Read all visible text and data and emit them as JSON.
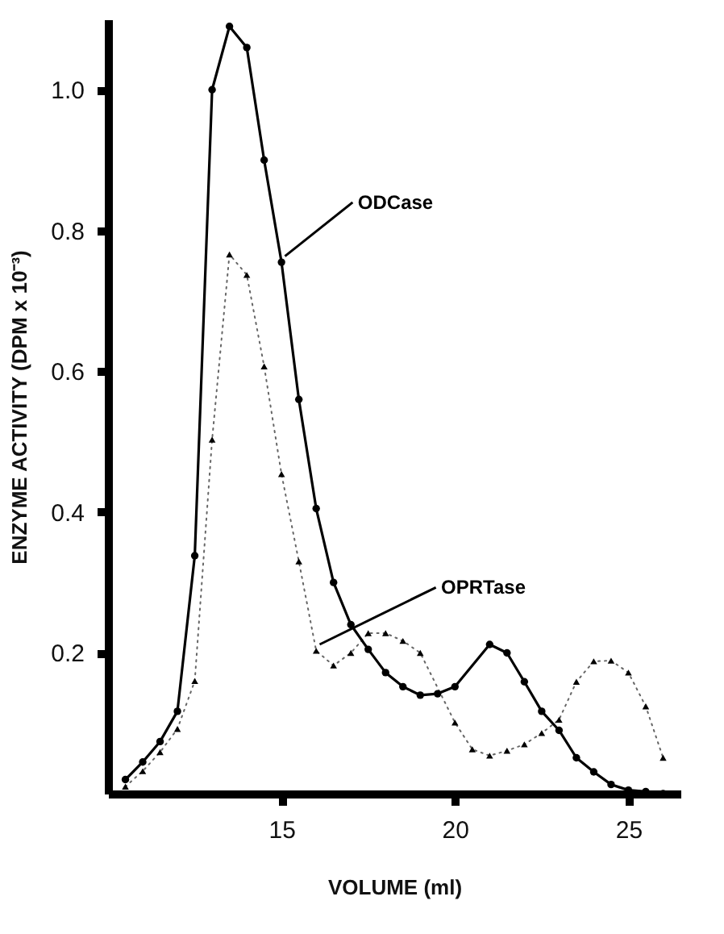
{
  "chart_data": {
    "type": "line",
    "xlabel": "VOLUME (ml)",
    "ylabel": "ENZYME ACTIVITY (DPM x 10⁻³)",
    "xlim": [
      10,
      26.5
    ],
    "ylim": [
      0,
      1.1
    ],
    "xticks": [
      15,
      20,
      25
    ],
    "yticks": [
      0.2,
      0.4,
      0.6,
      0.8,
      {
        "value": 1,
        "label": "1.0"
      }
    ],
    "grid": false,
    "series": [
      {
        "name": "ODCase",
        "color": "#000000",
        "marker": "circle",
        "line_style": "solid",
        "x": [
          10.5,
          11,
          11.5,
          12,
          12.5,
          13,
          13.5,
          14,
          14.5,
          15,
          15.5,
          16,
          16.5,
          17,
          17.5,
          18,
          18.5,
          19,
          19.5,
          20,
          21,
          21.5,
          22,
          22.5,
          23,
          23.5,
          24,
          24.5,
          25,
          25.5,
          26
        ],
        "values": [
          0.02,
          0.045,
          0.074,
          0.117,
          0.338,
          1.0,
          1.09,
          1.06,
          0.9,
          0.755,
          0.56,
          0.405,
          0.3,
          0.24,
          0.205,
          0.172,
          0.152,
          0.14,
          0.142,
          0.152,
          0.212,
          0.2,
          0.159,
          0.117,
          0.09,
          0.051,
          0.031,
          0.013,
          0.005,
          0.003,
          0.0
        ]
      },
      {
        "name": "OPRTase",
        "color": "#000000",
        "marker": "triangle",
        "line_style": "dotted",
        "x": [
          10.5,
          11,
          11.5,
          12,
          12.5,
          13,
          13.5,
          14,
          14.5,
          15,
          15.5,
          16,
          16.5,
          17,
          17.5,
          18,
          18.5,
          19,
          20,
          20.5,
          21,
          21.5,
          22,
          22.5,
          23,
          23.5,
          24,
          24.5,
          25,
          25.5,
          26
        ],
        "values": [
          0.01,
          0.032,
          0.059,
          0.092,
          0.16,
          0.503,
          0.766,
          0.737,
          0.607,
          0.454,
          0.33,
          0.203,
          0.182,
          0.2,
          0.228,
          0.228,
          0.217,
          0.2,
          0.101,
          0.063,
          0.054,
          0.061,
          0.07,
          0.086,
          0.105,
          0.159,
          0.188,
          0.189,
          0.172,
          0.124,
          0.051
        ]
      }
    ]
  }
}
